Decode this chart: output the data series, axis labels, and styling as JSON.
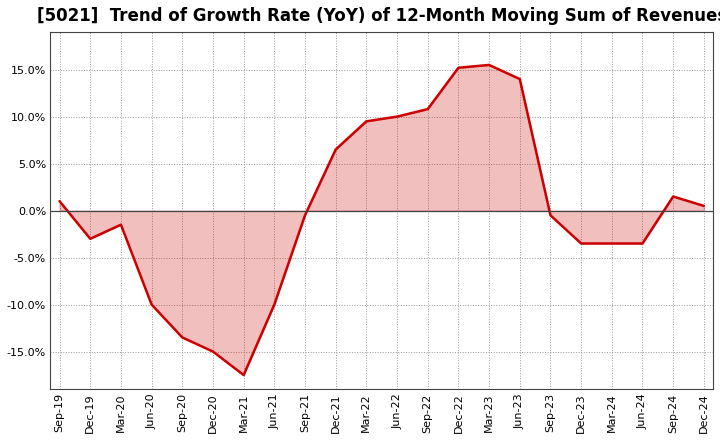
{
  "title": "[5021]  Trend of Growth Rate (YoY) of 12-Month Moving Sum of Revenues",
  "x_labels": [
    "Sep-19",
    "Dec-19",
    "Mar-20",
    "Jun-20",
    "Sep-20",
    "Dec-20",
    "Mar-21",
    "Jun-21",
    "Sep-21",
    "Dec-21",
    "Mar-22",
    "Jun-22",
    "Sep-22",
    "Dec-22",
    "Mar-23",
    "Jun-23",
    "Sep-23",
    "Dec-23",
    "Mar-24",
    "Jun-24",
    "Sep-24",
    "Dec-24"
  ],
  "y_values": [
    1.0,
    -3.0,
    -1.5,
    -10.0,
    -13.5,
    -15.0,
    -17.5,
    -10.0,
    -0.5,
    6.5,
    9.5,
    10.0,
    10.8,
    15.2,
    15.5,
    14.0,
    -0.5,
    -3.5,
    -3.5,
    -3.5,
    1.5,
    0.5
  ],
  "line_color": "#cc0000",
  "fill_color": "#cc0000",
  "fill_alpha": 0.25,
  "line_width": 1.8,
  "background_color": "#ffffff",
  "plot_bg_color": "#ffffff",
  "grid_color": "#999999",
  "ylim": [
    -19,
    19
  ],
  "yticks": [
    -15.0,
    -10.0,
    -5.0,
    0.0,
    5.0,
    10.0,
    15.0
  ],
  "ytick_labels": [
    "-15.0%",
    "-10.0%",
    "-5.0%",
    "0.0%",
    "5.0%",
    "10.0%",
    "15.0%"
  ],
  "title_fontsize": 12,
  "tick_fontsize": 8
}
